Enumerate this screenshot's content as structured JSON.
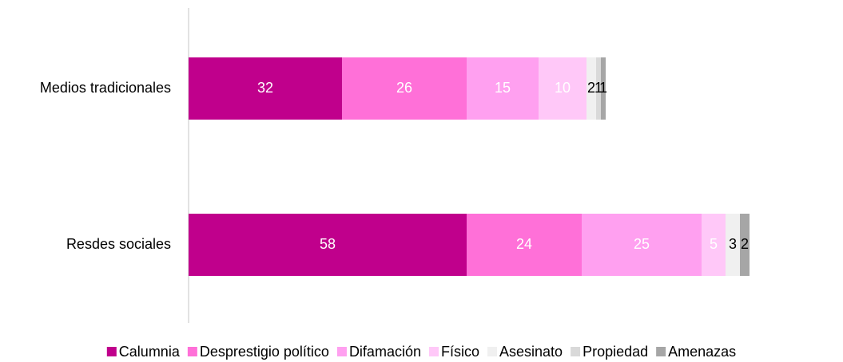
{
  "chart_data": {
    "type": "bar",
    "orientation": "horizontal",
    "stacked": true,
    "categories": [
      "Medios tradicionales",
      "Resdes sociales"
    ],
    "series": [
      {
        "name": "Calumnia",
        "color": "#c0008c",
        "label_color": "#ffffff",
        "values": [
          32,
          58
        ]
      },
      {
        "name": "Desprestigio político",
        "color": "#ff70d8",
        "label_color": "#ffffff",
        "values": [
          26,
          24
        ]
      },
      {
        "name": "Difamación",
        "color": "#ffa0f0",
        "label_color": "#ffffff",
        "values": [
          15,
          25
        ]
      },
      {
        "name": "Físico",
        "color": "#ffc8f8",
        "label_color": "#ffffff",
        "values": [
          10,
          5
        ]
      },
      {
        "name": "Asesinato",
        "color": "#f0f0f0",
        "label_color": "#000000",
        "values": [
          2,
          3
        ]
      },
      {
        "name": "Propiedad",
        "color": "#d9d9d9",
        "label_color": "#000000",
        "values": [
          1,
          null
        ]
      },
      {
        "name": "Amenazas",
        "color": "#a6a6a6",
        "label_color": "#000000",
        "values": [
          1,
          2
        ]
      }
    ],
    "legend": "bottom"
  }
}
